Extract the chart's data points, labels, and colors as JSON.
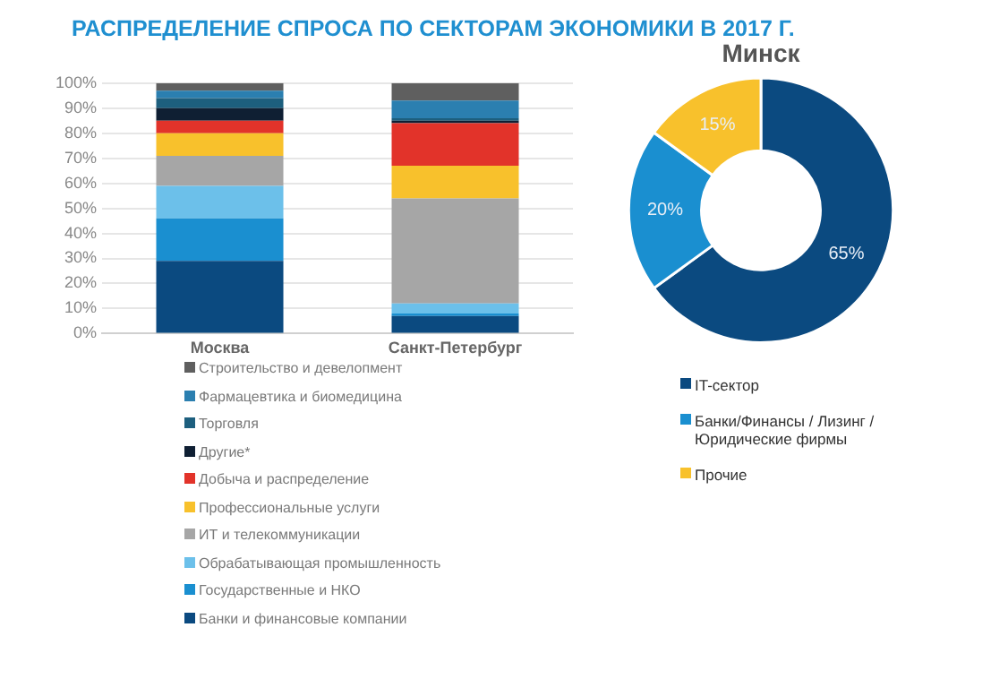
{
  "chart_data": [
    {
      "type": "bar",
      "title": "РАСПРЕДЕЛЕНИЕ СПРОСА ПО СЕКТОРАМ ЭКОНОМИКИ В 2017 Г.",
      "stacked": true,
      "categories": [
        "Москва",
        "Санкт-Петербург"
      ],
      "ylim": [
        0,
        100
      ],
      "yticks": [
        {
          "value": 0,
          "label": "0%"
        },
        {
          "value": 10,
          "label": "10%"
        },
        {
          "value": 20,
          "label": "20%"
        },
        {
          "value": 30,
          "label": "30%"
        },
        {
          "value": 40,
          "label": "40%"
        },
        {
          "value": 50,
          "label": "50%"
        },
        {
          "value": 60,
          "label": "60%"
        },
        {
          "value": 70,
          "label": "70%"
        },
        {
          "value": 80,
          "label": "80%"
        },
        {
          "value": 90,
          "label": "90%"
        },
        {
          "value": 100,
          "label": "100%"
        }
      ],
      "grid": "y",
      "legend": "bottom",
      "series": [
        {
          "name": "Банки и финансовые компании",
          "color": "#0b4a80",
          "values": [
            29,
            7
          ]
        },
        {
          "name": "Государственные и НКО",
          "color": "#1a8fd0",
          "values": [
            17,
            1
          ]
        },
        {
          "name": "Обрабатывающая промышленность",
          "color": "#6cc0ea",
          "values": [
            13,
            4
          ]
        },
        {
          "name": "ИТ и телекоммуникации",
          "color": "#a6a6a6",
          "values": [
            12,
            42
          ]
        },
        {
          "name": "Профессиональные услуги",
          "color": "#f8c12c",
          "values": [
            9,
            13
          ]
        },
        {
          "name": "Добыча и распределение",
          "color": "#e2332a",
          "values": [
            5,
            17
          ]
        },
        {
          "name": "Другие*",
          "color": "#0f1f33",
          "values": [
            5,
            1
          ]
        },
        {
          "name": "Торговля",
          "color": "#1d5f7e",
          "values": [
            4,
            1
          ]
        },
        {
          "name": "Фармацевтика и биомедицина",
          "color": "#2b7fb0",
          "values": [
            3,
            7
          ]
        },
        {
          "name": "Строительство и девелопмент",
          "color": "#5f5f5f",
          "values": [
            3,
            7
          ]
        }
      ]
    },
    {
      "type": "donut",
      "title": "Минск",
      "categories": [
        "IT-сектор",
        "Банки/Финансы / Лизинг / Юридические фирмы",
        "Прочие"
      ],
      "values": [
        65,
        20,
        15
      ],
      "colors": [
        "#0b4a80",
        "#1a8fd0",
        "#f8c12c"
      ],
      "value_labels": [
        "65%",
        "20%",
        "15%"
      ],
      "legend": "bottom"
    }
  ]
}
